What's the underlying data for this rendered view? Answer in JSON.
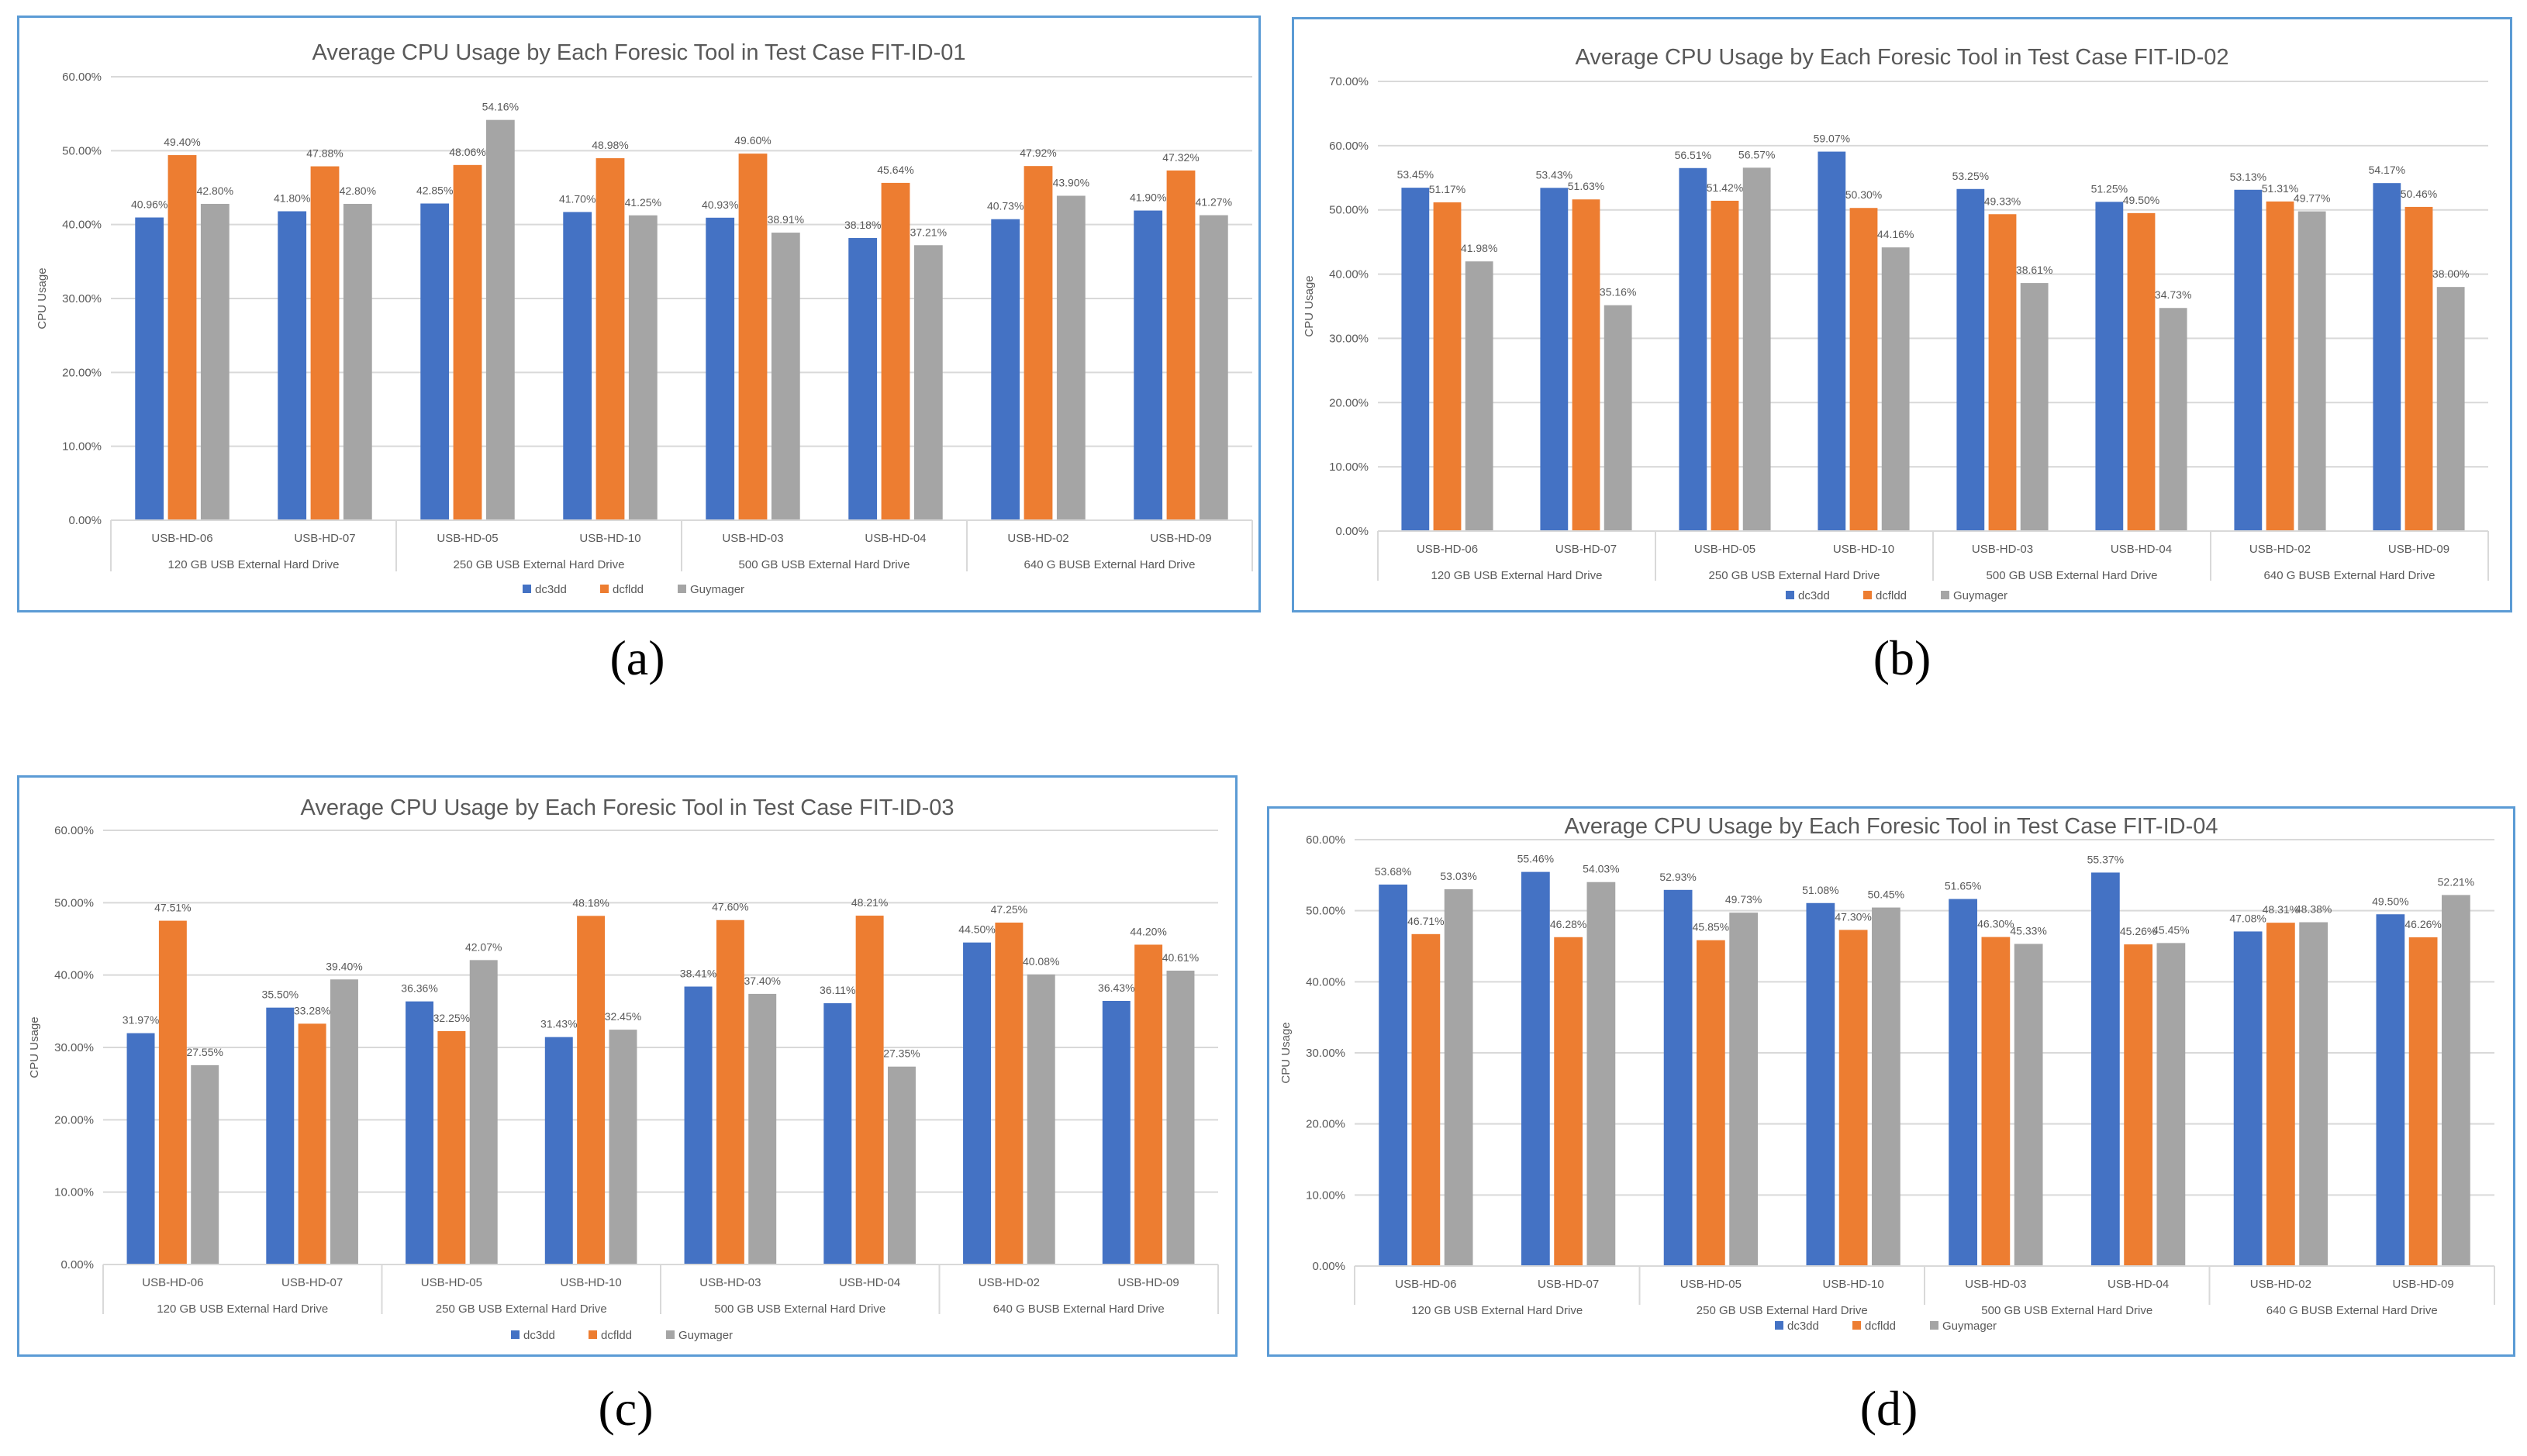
{
  "captions": [
    "(a)",
    "(b)",
    "(c)",
    "(d)"
  ],
  "colors": {
    "dc3dd": "#4472c4",
    "dcfldd": "#ed7d31",
    "Guymager": "#a5a5a5",
    "frame": "#5b9bd5",
    "grid": "#d9d9d9",
    "text": "#595959"
  },
  "chart_data": [
    {
      "type": "bar",
      "title": "Average CPU Usage by Each Foresic Tool in Test Case FIT-ID-01",
      "ylabel": "CPU Usage",
      "ylim": [
        0,
        60
      ],
      "yticks": [
        "0.00%",
        "10.00%",
        "20.00%",
        "30.00%",
        "40.00%",
        "50.00%",
        "60.00%"
      ],
      "categories": [
        "USB-HD-06",
        "USB-HD-07",
        "USB-HD-05",
        "USB-HD-10",
        "USB-HD-03",
        "USB-HD-04",
        "USB-HD-02",
        "USB-HD-09"
      ],
      "groups": [
        "120 GB USB External Hard Drive",
        "250 GB USB External Hard Drive",
        "500 GB USB External Hard Drive",
        "640 G BUSB External Hard Drive"
      ],
      "series": [
        {
          "name": "dc3dd",
          "values": [
            40.96,
            41.8,
            42.85,
            41.7,
            40.93,
            38.18,
            40.73,
            41.9
          ],
          "labels": [
            "40.96%",
            "41.80%",
            "42.85%",
            "41.70%",
            "40.93%",
            "38.18%",
            "40.73%",
            "41.90%"
          ]
        },
        {
          "name": "dcfldd",
          "values": [
            49.4,
            47.88,
            48.06,
            48.98,
            49.6,
            45.64,
            47.92,
            47.32
          ],
          "labels": [
            "49.40%",
            "47.88%",
            "48.06%",
            "48.98%",
            "49.60%",
            "45.64%",
            "47.92%",
            "47.32%"
          ]
        },
        {
          "name": "Guymager",
          "values": [
            42.8,
            42.8,
            54.16,
            41.25,
            38.91,
            37.21,
            43.9,
            41.27
          ],
          "labels": [
            "42.80%",
            "42.80%",
            "54.16%",
            "41.25%",
            "38.91%",
            "37.21%",
            "43.90%",
            "41.27%"
          ]
        }
      ]
    },
    {
      "type": "bar",
      "title": "Average CPU Usage by Each Foresic Tool in Test Case FIT-ID-02",
      "ylabel": "CPU Usage",
      "ylim": [
        0,
        70
      ],
      "yticks": [
        "0.00%",
        "10.00%",
        "20.00%",
        "30.00%",
        "40.00%",
        "50.00%",
        "60.00%",
        "70.00%"
      ],
      "categories": [
        "USB-HD-06",
        "USB-HD-07",
        "USB-HD-05",
        "USB-HD-10",
        "USB-HD-03",
        "USB-HD-04",
        "USB-HD-02",
        "USB-HD-09"
      ],
      "groups": [
        "120 GB USB External Hard Drive",
        "250 GB USB External Hard Drive",
        "500 GB USB External Hard Drive",
        "640 G BUSB External Hard Drive"
      ],
      "series": [
        {
          "name": "dc3dd",
          "values": [
            53.45,
            53.43,
            56.51,
            59.07,
            53.25,
            51.25,
            53.13,
            54.17
          ],
          "labels": [
            "53.45%",
            "53.43%",
            "56.51%",
            "59.07%",
            "53.25%",
            "51.25%",
            "53.13%",
            "54.17%"
          ]
        },
        {
          "name": "dcfldd",
          "values": [
            51.17,
            51.63,
            51.42,
            50.3,
            49.33,
            49.5,
            51.31,
            50.46
          ],
          "labels": [
            "51.17%",
            "51.63%",
            "51.42%",
            "50.30%",
            "49.33%",
            "49.50%",
            "51.31%",
            "50.46%"
          ]
        },
        {
          "name": "Guymager",
          "values": [
            41.98,
            35.16,
            56.57,
            44.16,
            38.61,
            34.73,
            49.77,
            38.0
          ],
          "labels": [
            "41.98%",
            "35.16%",
            "56.57%",
            "44.16%",
            "38.61%",
            "34.73%",
            "49.77%",
            "38.00%"
          ]
        }
      ]
    },
    {
      "type": "bar",
      "title": "Average CPU Usage by Each Foresic Tool in Test Case FIT-ID-03",
      "ylabel": "CPU Usage",
      "ylim": [
        0,
        60
      ],
      "yticks": [
        "0.00%",
        "10.00%",
        "20.00%",
        "30.00%",
        "40.00%",
        "50.00%",
        "60.00%"
      ],
      "categories": [
        "USB-HD-06",
        "USB-HD-07",
        "USB-HD-05",
        "USB-HD-10",
        "USB-HD-03",
        "USB-HD-04",
        "USB-HD-02",
        "USB-HD-09"
      ],
      "groups": [
        "120 GB USB External Hard Drive",
        "250 GB USB External Hard Drive",
        "500 GB USB External Hard Drive",
        "640 G BUSB External Hard Drive"
      ],
      "series": [
        {
          "name": "dc3dd",
          "values": [
            31.97,
            35.5,
            36.36,
            31.43,
            38.41,
            36.11,
            44.5,
            36.43
          ],
          "labels": [
            "31.97%",
            "35.50%",
            "36.36%",
            "31.43%",
            "38.41%",
            "36.11%",
            "44.50%",
            "36.43%"
          ]
        },
        {
          "name": "dcfldd",
          "values": [
            47.51,
            33.28,
            32.25,
            48.18,
            47.6,
            48.21,
            47.25,
            44.2
          ],
          "labels": [
            "47.51%",
            "33.28%",
            "32.25%",
            "48.18%",
            "47.60%",
            "48.21%",
            "47.25%",
            "44.20%"
          ]
        },
        {
          "name": "Guymager",
          "values": [
            27.55,
            39.4,
            42.07,
            32.45,
            37.4,
            27.35,
            40.08,
            40.61
          ],
          "labels": [
            "27.55%",
            "39.40%",
            "42.07%",
            "32.45%",
            "37.40%",
            "27.35%",
            "40.08%",
            "40.61%"
          ]
        }
      ]
    },
    {
      "type": "bar",
      "title": "Average CPU Usage by Each Foresic Tool in Test Case FIT-ID-04",
      "ylabel": "CPU Usage",
      "ylim": [
        0,
        60
      ],
      "yticks": [
        "0.00%",
        "10.00%",
        "20.00%",
        "30.00%",
        "40.00%",
        "50.00%",
        "60.00%"
      ],
      "categories": [
        "USB-HD-06",
        "USB-HD-07",
        "USB-HD-05",
        "USB-HD-10",
        "USB-HD-03",
        "USB-HD-04",
        "USB-HD-02",
        "USB-HD-09"
      ],
      "groups": [
        "120 GB USB External Hard Drive",
        "250 GB USB External Hard Drive",
        "500 GB USB External Hard Drive",
        "640 G BUSB External Hard Drive"
      ],
      "series": [
        {
          "name": "dc3dd",
          "values": [
            53.68,
            55.46,
            52.93,
            51.08,
            51.65,
            55.37,
            47.08,
            49.5
          ],
          "labels": [
            "53.68%",
            "55.46%",
            "52.93%",
            "51.08%",
            "51.65%",
            "55.37%",
            "47.08%",
            "49.50%"
          ]
        },
        {
          "name": "dcfldd",
          "values": [
            46.71,
            46.28,
            45.85,
            47.3,
            46.3,
            45.26,
            48.31,
            46.26
          ],
          "labels": [
            "46.71%",
            "46.28%",
            "45.85%",
            "47.30%",
            "46.30%",
            "45.26%",
            "48.31%",
            "46.26%"
          ]
        },
        {
          "name": "Guymager",
          "values": [
            53.03,
            54.03,
            49.73,
            50.45,
            45.33,
            45.45,
            48.38,
            52.21
          ],
          "labels": [
            "53.03%",
            "54.03%",
            "49.73%",
            "50.45%",
            "45.33%",
            "45.45%",
            "48.38%",
            "52.21%"
          ]
        }
      ]
    }
  ]
}
